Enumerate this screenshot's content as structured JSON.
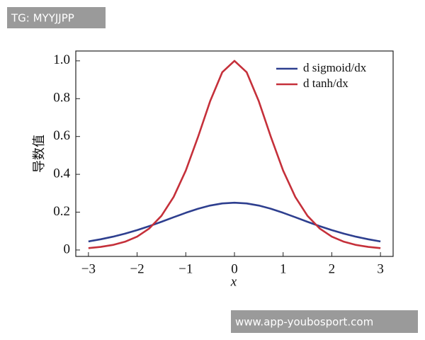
{
  "chart_data": {
    "type": "line",
    "x_label": "x",
    "y_label": "导数值",
    "x": [
      -3,
      -2.75,
      -2.5,
      -2.25,
      -2,
      -1.75,
      -1.5,
      -1.25,
      -1,
      -0.75,
      -0.5,
      -0.25,
      0,
      0.25,
      0.5,
      0.75,
      1,
      1.25,
      1.5,
      1.75,
      2,
      2.25,
      2.5,
      2.75,
      3
    ],
    "series": [
      {
        "name": "d sigmoid/dx",
        "color": "#2e3f8f",
        "values": [
          0.0452,
          0.0565,
          0.0701,
          0.0862,
          0.105,
          0.1261,
          0.1491,
          0.1731,
          0.1966,
          0.2179,
          0.235,
          0.2461,
          0.25,
          0.2461,
          0.235,
          0.2179,
          0.1966,
          0.1731,
          0.1491,
          0.1261,
          0.105,
          0.0862,
          0.0701,
          0.0565,
          0.0452
        ]
      },
      {
        "name": "d tanh/dx",
        "color": "#c5303a",
        "values": [
          0.0099,
          0.0163,
          0.0266,
          0.0436,
          0.0707,
          0.1138,
          0.1807,
          0.2804,
          0.42,
          0.5966,
          0.7864,
          0.94,
          1,
          0.94,
          0.7864,
          0.5966,
          0.42,
          0.2804,
          0.1807,
          0.1138,
          0.0707,
          0.0436,
          0.0266,
          0.0163,
          0.0099
        ]
      }
    ],
    "xlim": [
      -3.26,
      3.26
    ],
    "ylim": [
      -0.034,
      1.052
    ],
    "xticks": [
      {
        "value": -3,
        "label": "−3"
      },
      {
        "value": -2,
        "label": "−2"
      },
      {
        "value": -1,
        "label": "−1"
      },
      0,
      1,
      2,
      3
    ],
    "yticks": [
      0,
      0.2,
      0.4,
      0.6,
      0.8,
      {
        "value": 1,
        "label": "1.0"
      }
    ],
    "legend": "upper-right",
    "grid": false
  },
  "watermarks": [
    "TG: MYYJJPP",
    "www.app-youbosport.com"
  ]
}
